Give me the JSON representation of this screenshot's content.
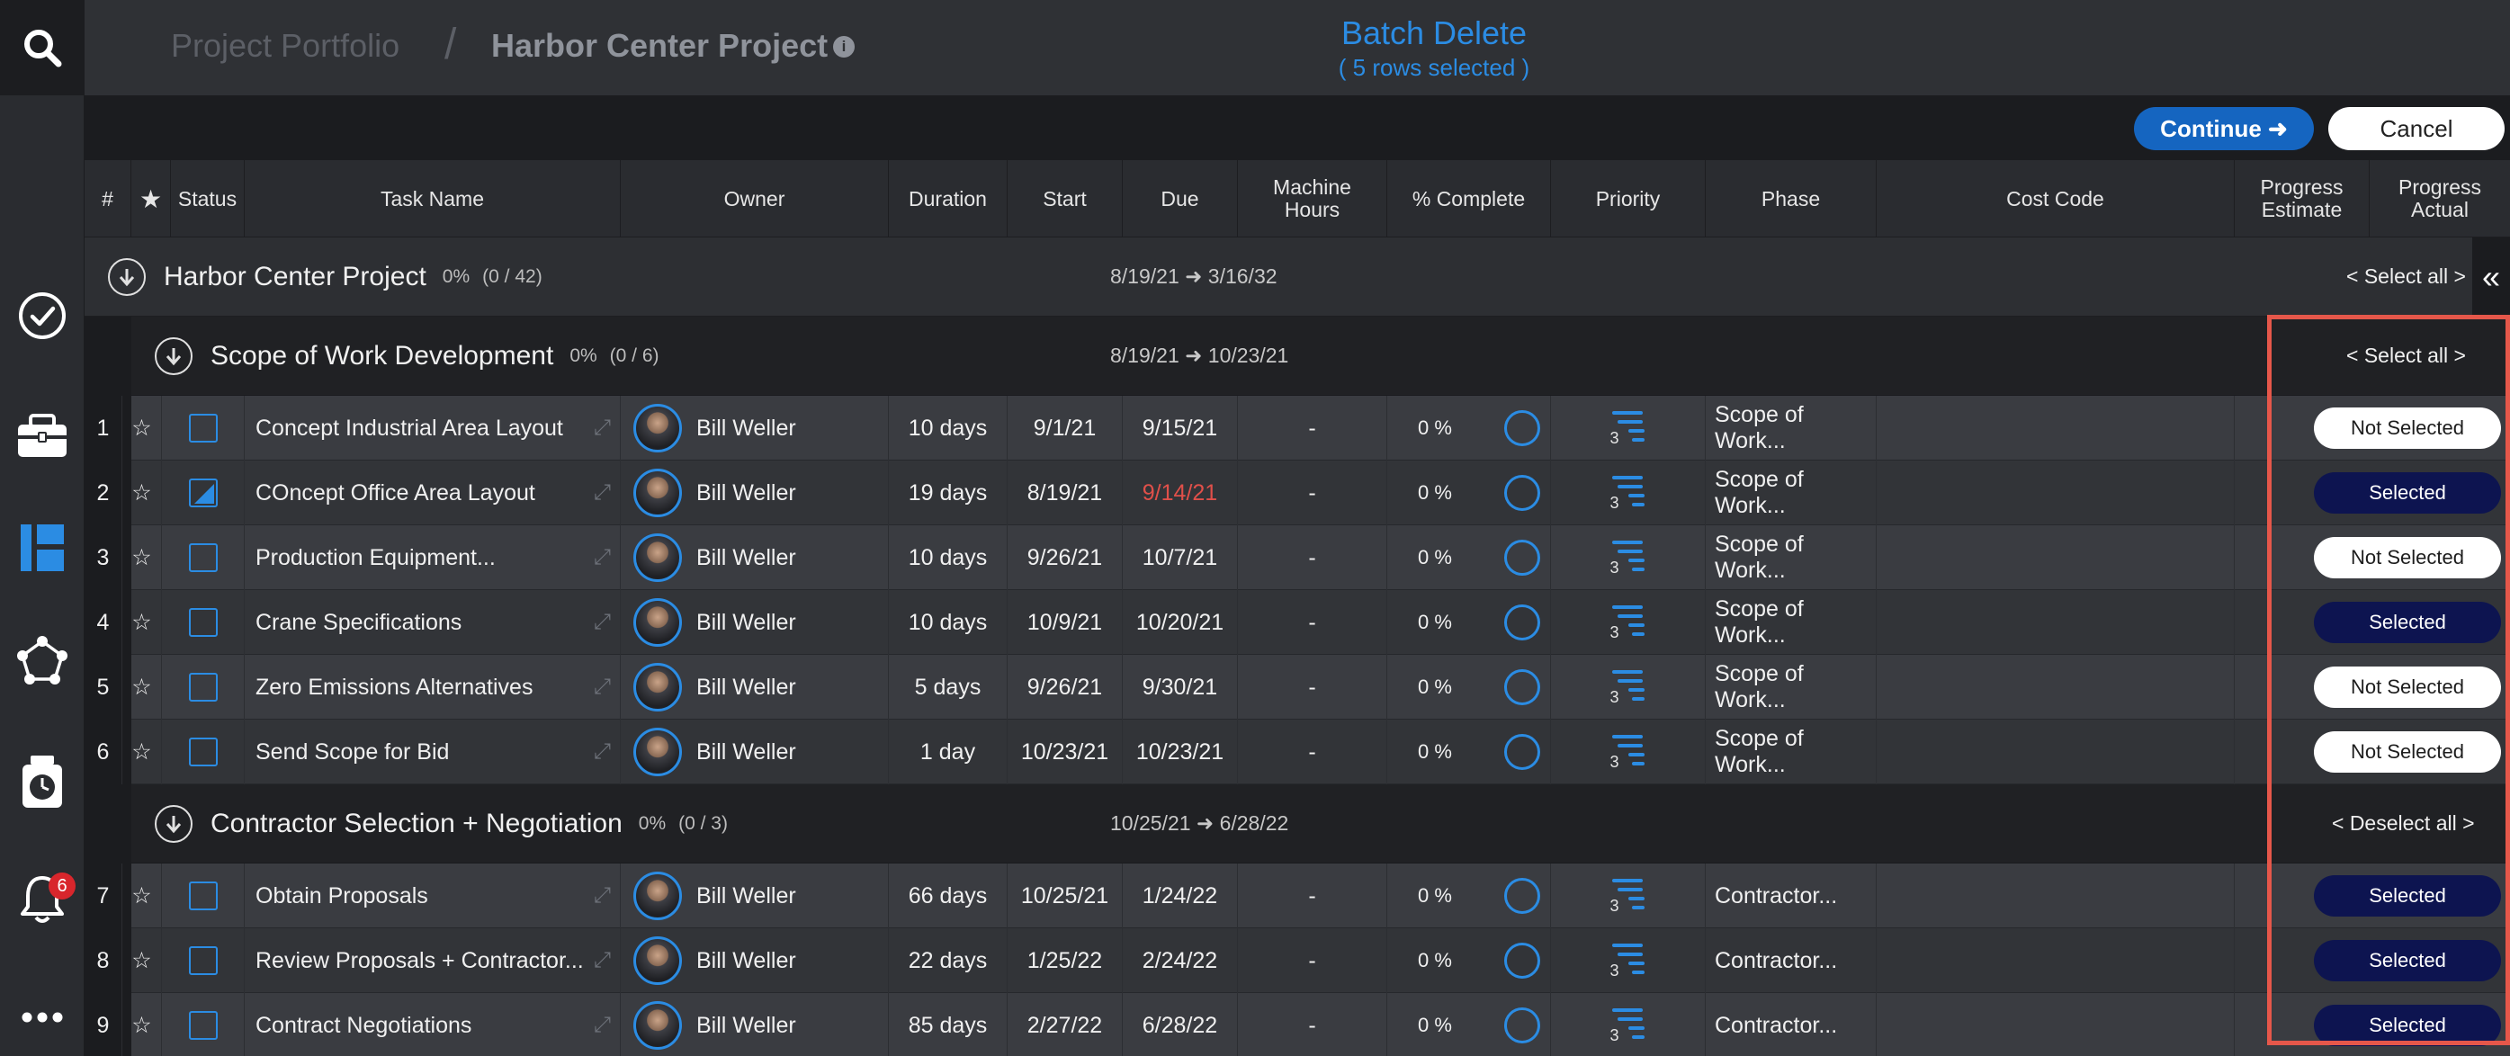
{
  "header": {
    "breadcrumb_root": "Project Portfolio",
    "breadcrumb_sep": "/",
    "project_title": "Harbor Center Project",
    "info_glyph": "i",
    "batch_title": "Batch Delete",
    "batch_subtitle": "( 5 rows selected )"
  },
  "actions": {
    "continue_label": "Continue ➜",
    "cancel_label": "Cancel"
  },
  "rail": {
    "notification_count": "6",
    "icons": [
      "search-icon",
      "check-circle-icon",
      "briefcase-icon",
      "board-icon",
      "network-icon",
      "timer-icon",
      "bell-icon",
      "more-icon"
    ]
  },
  "columns": {
    "num": "#",
    "star": "★",
    "status": "Status",
    "task_name": "Task Name",
    "owner": "Owner",
    "duration": "Duration",
    "start": "Start",
    "due": "Due",
    "machine_hours": "Machine Hours",
    "pct_complete": "% Complete",
    "priority": "Priority",
    "phase": "Phase",
    "cost_code": "Cost Code",
    "progress_estimate": "Progress Estimate",
    "progress_actual": "Progress Actual"
  },
  "project_group": {
    "title": "Harbor Center Project",
    "pct": "0%",
    "count": "(0 / 42)",
    "dates": "8/19/21 ➜ 3/16/32",
    "select_label": "< Select all >",
    "collapse_glyph": "«"
  },
  "groups": [
    {
      "title": "Scope of Work Development",
      "pct": "0%",
      "count": "(0 / 6)",
      "dates": "8/19/21 ➜ 10/23/21",
      "select_label": "< Select all >",
      "rows": [
        {
          "num": "1",
          "name": "Concept Industrial Area Layout",
          "owner": "Bill Weller",
          "duration": "10 days",
          "start": "9/1/21",
          "due": "9/15/21",
          "due_overdue": false,
          "machine": "-",
          "pct": "0 %",
          "priority": "3",
          "phase": "Scope of Work...",
          "estimate": "0",
          "selected": false,
          "selected_label": "Not Selected",
          "checkbox": "empty"
        },
        {
          "num": "2",
          "name": "COncept Office Area Layout",
          "owner": "Bill Weller",
          "duration": "19 days",
          "start": "8/19/21",
          "due": "9/14/21",
          "due_overdue": true,
          "machine": "-",
          "pct": "0 %",
          "priority": "3",
          "phase": "Scope of Work...",
          "estimate": "0",
          "selected": true,
          "selected_label": "Selected",
          "checkbox": "partial"
        },
        {
          "num": "3",
          "name": "Production Equipment...",
          "owner": "Bill Weller",
          "duration": "10 days",
          "start": "9/26/21",
          "due": "10/7/21",
          "due_overdue": false,
          "machine": "-",
          "pct": "0 %",
          "priority": "3",
          "phase": "Scope of Work...",
          "estimate": "0",
          "selected": false,
          "selected_label": "Not Selected",
          "checkbox": "empty"
        },
        {
          "num": "4",
          "name": "Crane Specifications",
          "owner": "Bill Weller",
          "duration": "10 days",
          "start": "10/9/21",
          "due": "10/20/21",
          "due_overdue": false,
          "machine": "-",
          "pct": "0 %",
          "priority": "3",
          "phase": "Scope of Work...",
          "estimate": "0",
          "selected": true,
          "selected_label": "Selected",
          "checkbox": "empty"
        },
        {
          "num": "5",
          "name": "Zero Emissions Alternatives",
          "owner": "Bill Weller",
          "duration": "5 days",
          "start": "9/26/21",
          "due": "9/30/21",
          "due_overdue": false,
          "machine": "-",
          "pct": "0 %",
          "priority": "3",
          "phase": "Scope of Work...",
          "estimate": "0",
          "selected": false,
          "selected_label": "Not Selected",
          "checkbox": "empty"
        },
        {
          "num": "6",
          "name": "Send Scope for Bid",
          "owner": "Bill Weller",
          "duration": "1 day",
          "start": "10/23/21",
          "due": "10/23/21",
          "due_overdue": false,
          "machine": "-",
          "pct": "0 %",
          "priority": "3",
          "phase": "Scope of Work...",
          "estimate": "0",
          "selected": false,
          "selected_label": "Not Selected",
          "checkbox": "empty"
        }
      ]
    },
    {
      "title": "Contractor Selection + Negotiation",
      "pct": "0%",
      "count": "(0 / 3)",
      "dates": "10/25/21 ➜ 6/28/22",
      "select_label": "< Deselect all >",
      "rows": [
        {
          "num": "7",
          "name": "Obtain Proposals",
          "owner": "Bill Weller",
          "duration": "66 days",
          "start": "10/25/21",
          "due": "1/24/22",
          "due_overdue": false,
          "machine": "-",
          "pct": "0 %",
          "priority": "3",
          "phase": "Contractor...",
          "estimate": "0",
          "selected": true,
          "selected_label": "Selected",
          "checkbox": "empty"
        },
        {
          "num": "8",
          "name": "Review Proposals + Contractor...",
          "owner": "Bill Weller",
          "duration": "22 days",
          "start": "1/25/22",
          "due": "2/24/22",
          "due_overdue": false,
          "machine": "-",
          "pct": "0 %",
          "priority": "3",
          "phase": "Contractor...",
          "estimate": "0",
          "selected": true,
          "selected_label": "Selected",
          "checkbox": "empty"
        },
        {
          "num": "9",
          "name": "Contract Negotiations",
          "owner": "Bill Weller",
          "duration": "85 days",
          "start": "2/27/22",
          "due": "6/28/22",
          "due_overdue": false,
          "machine": "-",
          "pct": "0 %",
          "priority": "3",
          "phase": "Contractor...",
          "estimate": "0",
          "selected": true,
          "selected_label": "Selected",
          "checkbox": "empty"
        }
      ]
    }
  ],
  "colors": {
    "accent": "#2b8ce3",
    "overdue": "#e0504a",
    "selected_pill": "#0d1450",
    "highlight_box": "#e5574a"
  }
}
